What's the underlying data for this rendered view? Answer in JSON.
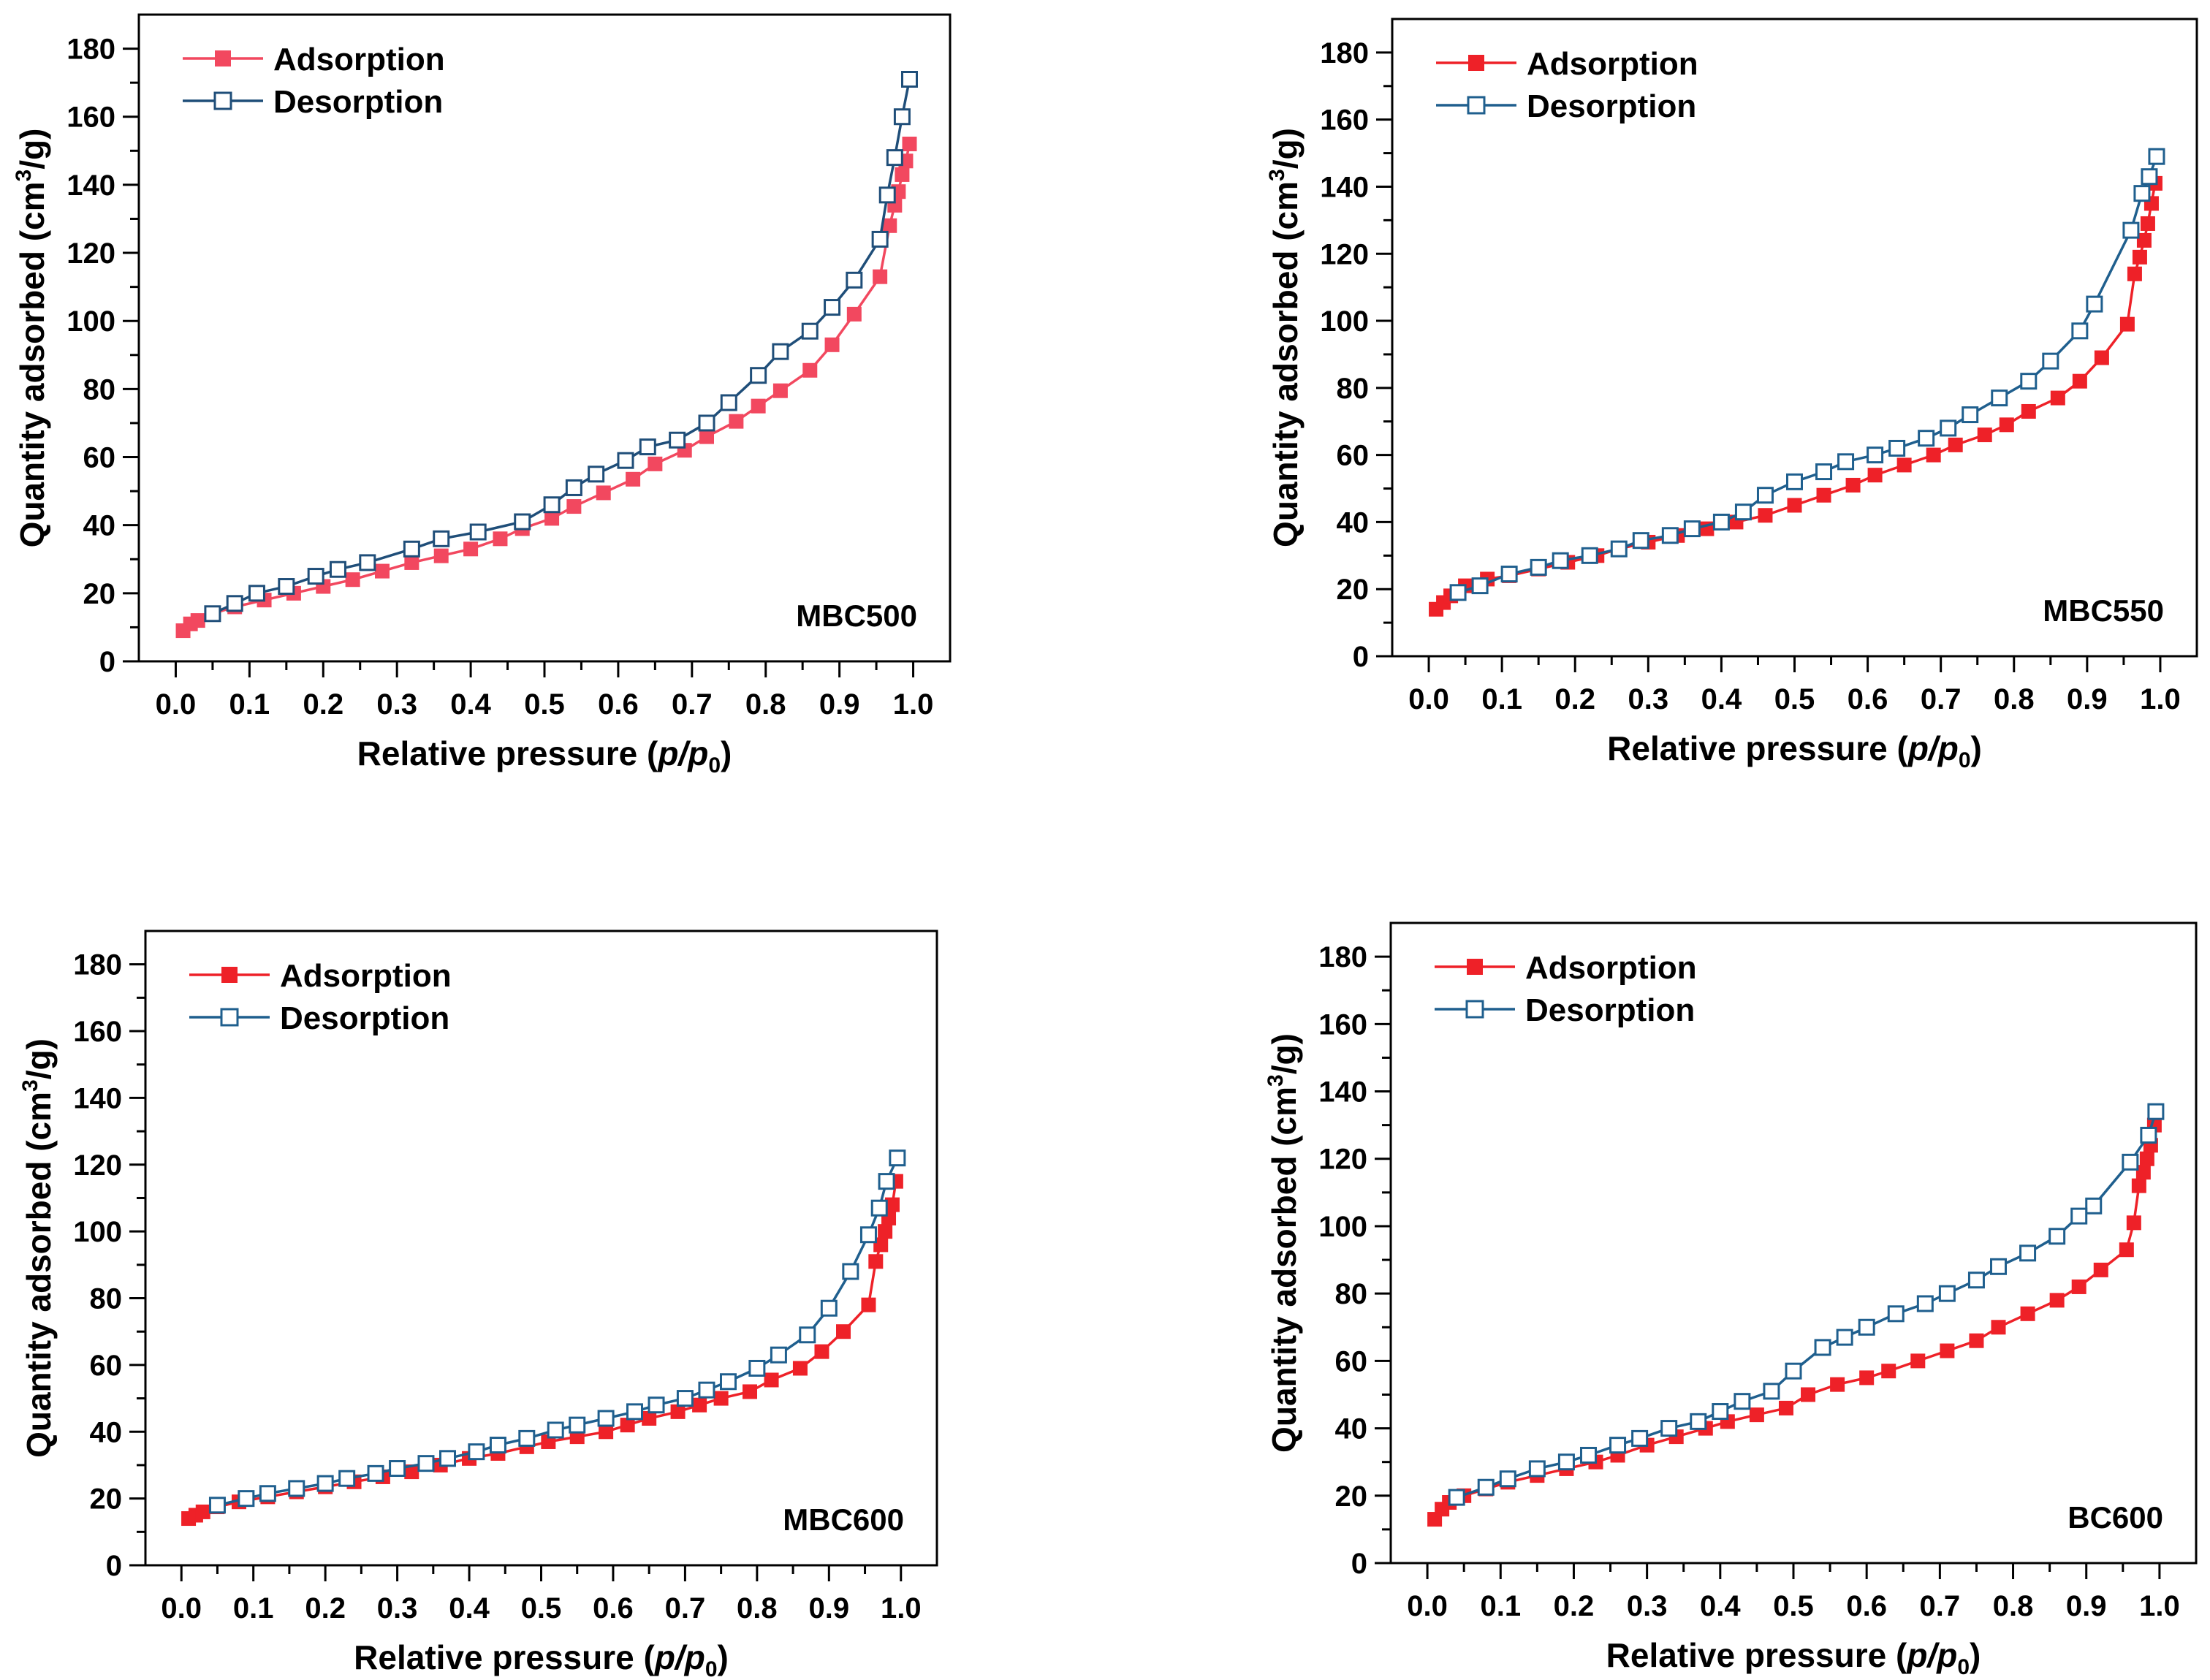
{
  "chart_data": [
    {
      "type": "scatter",
      "title": "",
      "sample_label": "MBC500",
      "xlabel": "Relative pressure (p/p₀)",
      "ylabel": "Quantity adsorbed (cm³/g)",
      "xlim": [
        -0.05,
        1.05
      ],
      "ylim": [
        0,
        190
      ],
      "xticks": [
        "0.0",
        "0.1",
        "0.2",
        "0.3",
        "0.4",
        "0.5",
        "0.6",
        "0.7",
        "0.8",
        "0.9",
        "1.0"
      ],
      "yticks": [
        "0",
        "20",
        "40",
        "60",
        "80",
        "100",
        "120",
        "140",
        "160",
        "180"
      ],
      "legend_position": "top-left",
      "grid": false,
      "series": [
        {
          "name": "Adsorption",
          "color": "#f2485f",
          "marker": "filled-square",
          "x": [
            0.01,
            0.02,
            0.03,
            0.05,
            0.08,
            0.12,
            0.16,
            0.2,
            0.24,
            0.28,
            0.32,
            0.36,
            0.4,
            0.44,
            0.47,
            0.51,
            0.54,
            0.58,
            0.62,
            0.65,
            0.69,
            0.72,
            0.76,
            0.79,
            0.82,
            0.86,
            0.89,
            0.92,
            0.955,
            0.968,
            0.975,
            0.98,
            0.985,
            0.99,
            0.995
          ],
          "y": [
            9,
            11,
            12,
            14,
            16,
            18,
            20,
            22,
            24,
            26.5,
            29,
            31,
            33,
            36,
            39,
            42,
            45.5,
            49.5,
            53.5,
            58,
            62,
            66,
            70.5,
            75,
            79.5,
            85.5,
            93,
            102,
            113,
            128,
            134,
            138,
            143,
            147,
            152
          ]
        },
        {
          "name": "Desorption",
          "color": "#1f4e79",
          "marker": "open-square",
          "x": [
            0.995,
            0.985,
            0.975,
            0.965,
            0.955,
            0.92,
            0.89,
            0.86,
            0.82,
            0.79,
            0.75,
            0.72,
            0.68,
            0.64,
            0.61,
            0.57,
            0.54,
            0.51,
            0.47,
            0.41,
            0.36,
            0.32,
            0.26,
            0.22,
            0.19,
            0.15,
            0.11,
            0.08,
            0.05
          ],
          "y": [
            171,
            160,
            148,
            137,
            124,
            112,
            104,
            97,
            91,
            84,
            76,
            70,
            65,
            63,
            59,
            55,
            51,
            46,
            41,
            38,
            36,
            33,
            29,
            27,
            25,
            22,
            20,
            17,
            14
          ]
        }
      ]
    },
    {
      "type": "scatter",
      "title": "",
      "sample_label": "MBC550",
      "xlabel": "Relative pressure (p/p₀)",
      "ylabel": "Quantity adsorbed (cm³/g)",
      "xlim": [
        -0.05,
        1.05
      ],
      "ylim": [
        0,
        190
      ],
      "xticks": [
        "0.0",
        "0.1",
        "0.2",
        "0.3",
        "0.4",
        "0.5",
        "0.6",
        "0.7",
        "0.8",
        "0.9",
        "1.0"
      ],
      "yticks": [
        "0",
        "20",
        "40",
        "60",
        "80",
        "100",
        "120",
        "140",
        "160",
        "180"
      ],
      "legend_position": "top-left",
      "grid": false,
      "series": [
        {
          "name": "Adsorption",
          "color": "#ee2128",
          "marker": "filled-square",
          "x": [
            0.01,
            0.02,
            0.03,
            0.05,
            0.08,
            0.11,
            0.15,
            0.19,
            0.23,
            0.26,
            0.3,
            0.34,
            0.38,
            0.42,
            0.46,
            0.5,
            0.54,
            0.58,
            0.61,
            0.65,
            0.69,
            0.72,
            0.76,
            0.79,
            0.82,
            0.86,
            0.89,
            0.92,
            0.955,
            0.965,
            0.972,
            0.978,
            0.983,
            0.988,
            0.993
          ],
          "y": [
            14,
            16,
            18,
            21,
            23,
            24,
            26,
            28,
            30,
            32,
            34,
            36,
            38,
            40,
            42,
            45,
            48,
            51,
            54,
            57,
            60,
            63,
            66,
            69,
            73,
            77,
            82,
            89,
            99,
            114,
            119,
            124,
            129,
            135,
            141
          ]
        },
        {
          "name": "Desorption",
          "color": "#1f5f8e",
          "marker": "open-square",
          "x": [
            0.995,
            0.985,
            0.975,
            0.96,
            0.91,
            0.89,
            0.85,
            0.82,
            0.78,
            0.74,
            0.71,
            0.68,
            0.64,
            0.61,
            0.57,
            0.54,
            0.5,
            0.46,
            0.43,
            0.4,
            0.36,
            0.33,
            0.29,
            0.26,
            0.22,
            0.18,
            0.15,
            0.11,
            0.07,
            0.04
          ],
          "y": [
            149,
            143,
            138,
            127,
            105,
            97,
            88,
            82,
            77,
            72,
            68,
            65,
            62,
            60,
            58,
            55,
            52,
            48,
            43,
            40,
            38,
            36,
            34.5,
            32,
            30,
            28.5,
            26.5,
            24.5,
            21,
            19
          ]
        }
      ]
    },
    {
      "type": "scatter",
      "title": "",
      "sample_label": "MBC600",
      "xlabel": "Relative pressure (p/p₀)",
      "ylabel": "Quantity adsorbed (cm³/g)",
      "xlim": [
        -0.05,
        1.05
      ],
      "ylim": [
        0,
        190
      ],
      "xticks": [
        "0.0",
        "0.1",
        "0.2",
        "0.3",
        "0.4",
        "0.5",
        "0.6",
        "0.7",
        "0.8",
        "0.9",
        "1.0"
      ],
      "yticks": [
        "0",
        "20",
        "40",
        "60",
        "80",
        "100",
        "120",
        "140",
        "160",
        "180"
      ],
      "legend_position": "top-left",
      "grid": false,
      "series": [
        {
          "name": "Adsorption",
          "color": "#ee2128",
          "marker": "filled-square",
          "x": [
            0.01,
            0.02,
            0.03,
            0.05,
            0.08,
            0.12,
            0.16,
            0.2,
            0.24,
            0.28,
            0.32,
            0.36,
            0.4,
            0.44,
            0.48,
            0.51,
            0.55,
            0.59,
            0.62,
            0.65,
            0.69,
            0.72,
            0.75,
            0.79,
            0.82,
            0.86,
            0.89,
            0.92,
            0.955,
            0.965,
            0.972,
            0.978,
            0.983,
            0.988,
            0.993
          ],
          "y": [
            14,
            15,
            16,
            17.5,
            19,
            20.5,
            22,
            23.5,
            25,
            26.5,
            28,
            30,
            32,
            33.5,
            35.5,
            37,
            38.5,
            40,
            42,
            44,
            46,
            48,
            50,
            52,
            55.5,
            59,
            64,
            70,
            78,
            91,
            96,
            100,
            104,
            108,
            115
          ]
        },
        {
          "name": "Desorption",
          "color": "#1f5f8e",
          "marker": "open-square",
          "x": [
            0.995,
            0.98,
            0.97,
            0.955,
            0.93,
            0.9,
            0.87,
            0.83,
            0.8,
            0.76,
            0.73,
            0.7,
            0.66,
            0.63,
            0.59,
            0.55,
            0.52,
            0.48,
            0.44,
            0.41,
            0.37,
            0.34,
            0.3,
            0.27,
            0.23,
            0.2,
            0.16,
            0.12,
            0.09,
            0.05
          ],
          "y": [
            122,
            115,
            107,
            99,
            88,
            77,
            69,
            63,
            59,
            55,
            52.5,
            50,
            48,
            46,
            44,
            42,
            40.5,
            38,
            36,
            34,
            32,
            30.5,
            29,
            27.5,
            26,
            24.5,
            23,
            21.5,
            20,
            18
          ]
        }
      ]
    },
    {
      "type": "scatter",
      "title": "",
      "sample_label": "BC600",
      "xlabel": "Relative pressure (p/p₀)",
      "ylabel": "Quantity adsorbed (cm³/g)",
      "xlim": [
        -0.05,
        1.05
      ],
      "ylim": [
        0,
        190
      ],
      "xticks": [
        "0.0",
        "0.1",
        "0.2",
        "0.3",
        "0.4",
        "0.5",
        "0.6",
        "0.7",
        "0.8",
        "0.9",
        "1.0"
      ],
      "yticks": [
        "0",
        "20",
        "40",
        "60",
        "80",
        "100",
        "120",
        "140",
        "160",
        "180"
      ],
      "legend_position": "top-left",
      "grid": false,
      "series": [
        {
          "name": "Adsorption",
          "color": "#ee2128",
          "marker": "filled-square",
          "x": [
            0.01,
            0.02,
            0.03,
            0.05,
            0.08,
            0.11,
            0.15,
            0.19,
            0.23,
            0.26,
            0.3,
            0.34,
            0.38,
            0.41,
            0.45,
            0.49,
            0.52,
            0.56,
            0.6,
            0.63,
            0.67,
            0.71,
            0.75,
            0.78,
            0.82,
            0.86,
            0.89,
            0.92,
            0.955,
            0.965,
            0.972,
            0.978,
            0.983,
            0.988,
            0.993
          ],
          "y": [
            13,
            16,
            18,
            20,
            22,
            24,
            26,
            28,
            30,
            32,
            35,
            37.5,
            40,
            42,
            44,
            46,
            50,
            53,
            55,
            57,
            60,
            63,
            66,
            70,
            74,
            78,
            82,
            87,
            93,
            101,
            112,
            116,
            120,
            124,
            130
          ]
        },
        {
          "name": "Desorption",
          "color": "#1f5f8e",
          "marker": "open-square",
          "x": [
            0.995,
            0.985,
            0.96,
            0.91,
            0.89,
            0.86,
            0.82,
            0.78,
            0.75,
            0.71,
            0.68,
            0.64,
            0.6,
            0.57,
            0.54,
            0.5,
            0.47,
            0.43,
            0.4,
            0.37,
            0.33,
            0.29,
            0.26,
            0.22,
            0.19,
            0.15,
            0.11,
            0.08,
            0.04
          ],
          "y": [
            134,
            127,
            119,
            106,
            103,
            97,
            92,
            88,
            84,
            80,
            77,
            74,
            70,
            67,
            64,
            57,
            51,
            48,
            45,
            42,
            40,
            37,
            35,
            32,
            30,
            28,
            25,
            22.5,
            19.5
          ]
        }
      ]
    }
  ]
}
